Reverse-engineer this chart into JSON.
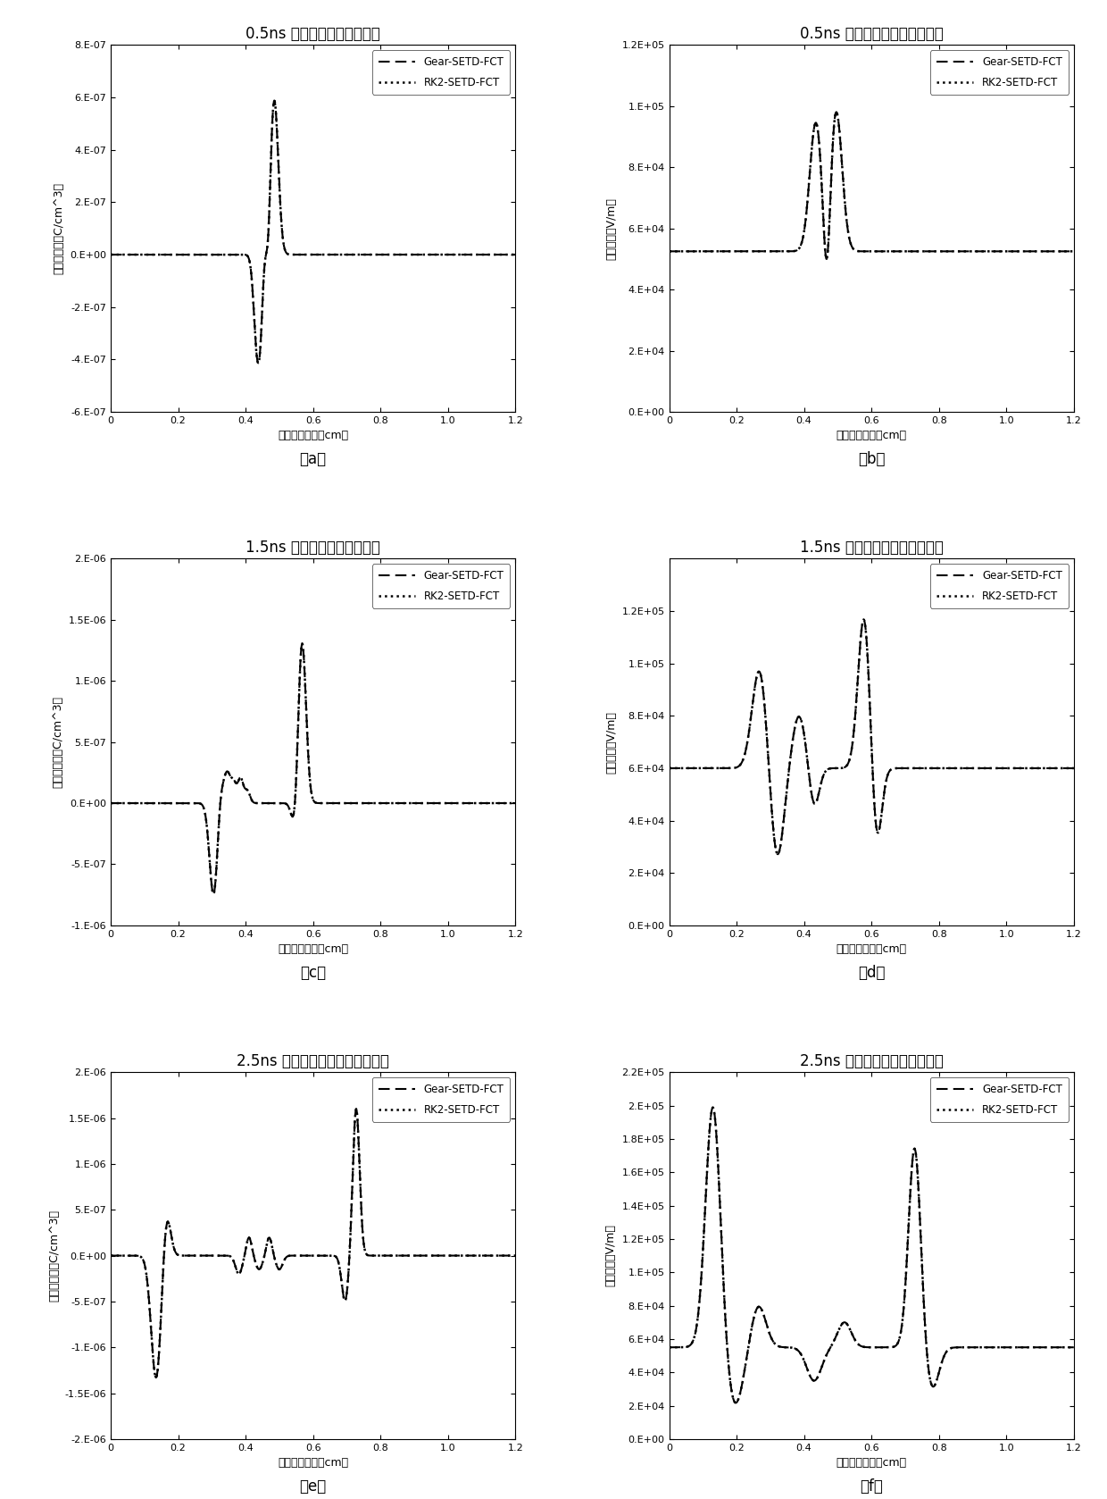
{
  "plots": [
    {
      "title": "0.5ns 流注通道内净电荷分布",
      "ylabel": "净电荷密度（C/cm^3）",
      "xlabel": "距负极板距离（cm）",
      "ylim": [
        -6e-07,
        8e-07
      ],
      "yticks": [
        -6e-07,
        -4e-07,
        -2e-07,
        0.0,
        2e-07,
        4e-07,
        6e-07,
        8e-07
      ],
      "ytick_labels": [
        "-6.E-07",
        "-4.E-07",
        "-2.E-07",
        "0.E+00",
        "2.E-07",
        "4.E-07",
        "6.E-07",
        "8.E-07"
      ],
      "xlim": [
        0,
        1.2
      ],
      "xticks": [
        0,
        0.2,
        0.4,
        0.6,
        0.8,
        1.0,
        1.2
      ],
      "label": "（a）"
    },
    {
      "title": "0.5ns 流注通道内电场强度分布",
      "ylabel": "电场强度（V/m）",
      "xlabel": "距负极板距离（cm）",
      "ylim": [
        0,
        120000.0
      ],
      "yticks": [
        0.0,
        20000.0,
        40000.0,
        60000.0,
        80000.0,
        100000.0,
        120000.0
      ],
      "ytick_labels": [
        "0.E+00",
        "2.E+04",
        "4.E+04",
        "6.E+04",
        "8.E+04",
        "1.E+05",
        "1.E+05"
      ],
      "xlim": [
        0,
        1.2
      ],
      "xticks": [
        0,
        0.2,
        0.4,
        0.6,
        0.8,
        1.0,
        1.2
      ],
      "label": "（b）"
    },
    {
      "title": "1.5ns 流注通道内净电荷分布",
      "ylabel": "净电荷密度（C/cm^3）",
      "xlabel": "距负极板距离（cm）",
      "ylim": [
        -1e-06,
        2e-06
      ],
      "yticks": [
        -1e-06,
        -5e-07,
        0.0,
        5e-07,
        1e-06,
        1.5e-06,
        2e-06
      ],
      "ytick_labels": [
        "-1.E-06",
        "-5.E-07",
        "0.E+00",
        "5.E-07",
        "1.E-06",
        "1.5.E-06",
        "2.E-06"
      ],
      "xlim": [
        0,
        1.2
      ],
      "xticks": [
        0,
        0.2,
        0.4,
        0.6,
        0.8,
        1.0,
        1.2
      ],
      "label": "（c）"
    },
    {
      "title": "1.5ns 流注通道内电场强度分布",
      "ylabel": "电场强度（V/m）",
      "xlabel": "距负极板距离（cm）",
      "ylim": [
        0,
        140000.0
      ],
      "yticks": [
        0.0,
        20000.0,
        40000.0,
        60000.0,
        80000.0,
        100000.0,
        120000.0
      ],
      "ytick_labels": [
        "0.E+00",
        "2.E+04",
        "4.E+04",
        "6.E+04",
        "8.E+04",
        "1.E+05",
        "1.E+05"
      ],
      "xlim": [
        0,
        1.2
      ],
      "xticks": [
        0,
        0.2,
        0.4,
        0.6,
        0.8,
        1.0,
        1.2
      ],
      "label": "（d）"
    },
    {
      "title": "2.5ns 流注通道内净电荷密度分布",
      "ylabel": "净电荷密度（C/cm^3）",
      "xlabel": "距负极板距离（cm）",
      "ylim": [
        -2e-06,
        2e-06
      ],
      "yticks": [
        -2e-06,
        -1.5e-06,
        -1e-06,
        -5e-07,
        0.0,
        5e-07,
        1e-06,
        1.5e-06,
        2e-06
      ],
      "ytick_labels": [
        "-2.E-06",
        "-1.5E-06",
        "-1.E-06",
        "-5.E-07",
        "0.E+00",
        "5.E-07",
        "1.E-06",
        "1.5E-06",
        "2.E-06"
      ],
      "xlim": [
        0,
        1.2
      ],
      "xticks": [
        0,
        0.2,
        0.4,
        0.6,
        0.8,
        1.0,
        1.2
      ],
      "label": "（e）"
    },
    {
      "title": "2.5ns 流注通道内电场强度分布",
      "ylabel": "电场强度（V/m）",
      "xlabel": "距负极板距离（cm）",
      "ylim": [
        0,
        220000.0
      ],
      "yticks": [
        0.0,
        20000.0,
        40000.0,
        60000.0,
        80000.0,
        100000.0,
        120000.0,
        140000.0,
        160000.0,
        180000.0,
        200000.0,
        220000.0
      ],
      "ytick_labels": [
        "0.E+00",
        "2.E+04",
        "4.E+04",
        "6.E+04",
        "8.E+04",
        "1.E+05",
        "1.E+05",
        "1.E+05",
        "2.E+05",
        "2.E+05",
        "2.E+05",
        "2.E+05"
      ],
      "xlim": [
        0,
        1.2
      ],
      "xticks": [
        0,
        0.2,
        0.4,
        0.6,
        0.8,
        1.0,
        1.2
      ],
      "label": "（f）"
    }
  ],
  "legend_dash": "Gear-SETD-FCT",
  "legend_dot": "RK2-SETD-FCT",
  "background_color": "#ffffff",
  "title_fontsize": 12,
  "axis_fontsize": 9,
  "tick_fontsize": 8
}
